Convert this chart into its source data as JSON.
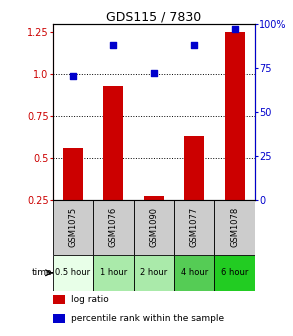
{
  "title": "GDS115 / 7830",
  "samples": [
    "GSM1075",
    "GSM1076",
    "GSM1090",
    "GSM1077",
    "GSM1078"
  ],
  "time_labels": [
    "0.5 hour",
    "1 hour",
    "2 hour",
    "4 hour",
    "6 hour"
  ],
  "log_ratio": [
    0.56,
    0.93,
    0.27,
    0.63,
    1.25
  ],
  "percentile_rank": [
    70,
    88,
    72,
    88,
    97
  ],
  "bar_color": "#cc0000",
  "dot_color": "#0000cc",
  "left_ylim": [
    0.25,
    1.3
  ],
  "right_ylim": [
    0,
    100
  ],
  "left_yticks": [
    0.25,
    0.5,
    0.75,
    1.0,
    1.25
  ],
  "right_yticks": [
    0,
    25,
    50,
    75,
    100
  ],
  "hlines": [
    0.5,
    0.75,
    1.0
  ],
  "time_colors": [
    "#e8ffe8",
    "#aaeaaa",
    "#aaeaaa",
    "#55cc55",
    "#22cc22"
  ],
  "sample_bg_color": "#cccccc",
  "legend_log_ratio": "log ratio",
  "legend_percentile": "percentile rank within the sample",
  "time_label": "time",
  "bar_width": 0.5,
  "title_fontsize": 9,
  "tick_fontsize": 7,
  "sample_fontsize": 6,
  "time_fontsize": 6,
  "legend_fontsize": 6.5
}
